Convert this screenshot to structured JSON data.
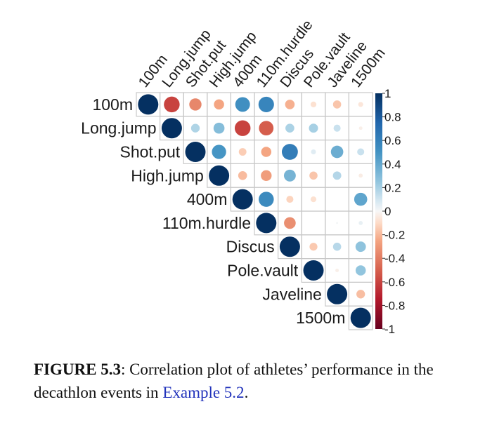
{
  "chart_data": {
    "type": "heatmap",
    "variables": [
      "100m",
      "Long.jump",
      "Shot.put",
      "High.jump",
      "400m",
      "110m.hurdle",
      "Discus",
      "Pole.vault",
      "Javeline",
      "1500m"
    ],
    "matrix": [
      [
        1.0,
        -0.6,
        -0.36,
        -0.25,
        0.52,
        0.58,
        -0.22,
        -0.08,
        -0.16,
        -0.06
      ],
      [
        null,
        1.0,
        0.18,
        0.29,
        -0.6,
        -0.51,
        0.19,
        0.2,
        0.12,
        -0.03
      ],
      [
        null,
        null,
        1.0,
        0.49,
        -0.14,
        -0.25,
        0.62,
        0.06,
        0.37,
        0.12
      ],
      [
        null,
        null,
        null,
        1.0,
        -0.19,
        -0.28,
        0.34,
        -0.16,
        0.17,
        -0.04
      ],
      [
        null,
        null,
        null,
        null,
        1.0,
        0.55,
        -0.12,
        -0.08,
        0.0,
        0.41
      ],
      [
        null,
        null,
        null,
        null,
        null,
        1.0,
        -0.33,
        0.0,
        0.01,
        0.04
      ],
      [
        null,
        null,
        null,
        null,
        null,
        null,
        1.0,
        -0.15,
        0.16,
        0.26
      ],
      [
        null,
        null,
        null,
        null,
        null,
        null,
        null,
        1.0,
        -0.03,
        0.25
      ],
      [
        null,
        null,
        null,
        null,
        null,
        null,
        null,
        null,
        1.0,
        -0.18
      ],
      [
        null,
        null,
        null,
        null,
        null,
        null,
        null,
        null,
        null,
        1.0
      ]
    ],
    "colorbar": {
      "ticks": [
        "1",
        "0.8",
        "0.6",
        "0.4",
        "0.2",
        "0",
        "-0.2",
        "-0.4",
        "-0.6",
        "-0.8",
        "-1"
      ],
      "range": [
        -1,
        1
      ]
    },
    "layout": "upper-triangle",
    "grid": true,
    "colors": {
      "negative": "#67001f",
      "neutral": "#f7f7f7",
      "positive": "#053061"
    }
  },
  "caption": {
    "label": "FIGURE 5.3",
    "text": ": Correlation plot of athletes’ performance in the decathlon events in ",
    "link": "Example 5.2",
    "end": "."
  }
}
